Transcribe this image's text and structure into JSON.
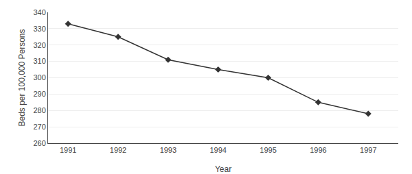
{
  "chart_data": {
    "type": "line",
    "x": [
      1991,
      1992,
      1993,
      1994,
      1995,
      1996,
      1997
    ],
    "values": [
      333,
      325,
      311,
      305,
      300,
      285,
      278
    ],
    "xlabel": "Year",
    "ylabel": "Beds per 100,000 Persons",
    "xlim": [
      1990.6,
      1997.6
    ],
    "xticks": [
      1991,
      1992,
      1993,
      1994,
      1995,
      1996,
      1997
    ],
    "ylim": [
      260,
      340
    ],
    "yticks": [
      260,
      270,
      280,
      290,
      300,
      310,
      320,
      330,
      340
    ],
    "color": "#333333",
    "marker": "diamond",
    "grid": true
  }
}
